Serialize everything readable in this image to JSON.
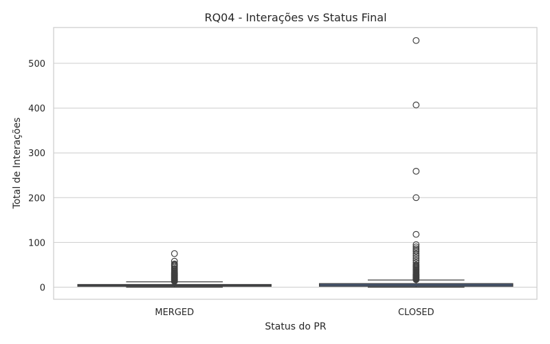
{
  "chart_data": {
    "type": "box",
    "title": "RQ04 - Interações vs Status Final",
    "xlabel": "Status do PR",
    "ylabel": "Total de Interações",
    "ylim": [
      -27,
      580
    ],
    "yticks": [
      0,
      100,
      200,
      300,
      400,
      500
    ],
    "grid": true,
    "colors": {
      "box_fill": "#4c72b0",
      "line": "#3f3f3f",
      "grid": "#cccccc"
    },
    "categories": [
      "MERGED",
      "CLOSED"
    ],
    "boxes": [
      {
        "category": "MERGED",
        "q1": 2,
        "median": 4,
        "q3": 6,
        "whisker_low": 0,
        "whisker_high": 12,
        "outliers": [
          13,
          14,
          15,
          16,
          17,
          18,
          19,
          20,
          21,
          22,
          23,
          24,
          25,
          26,
          27,
          28,
          29,
          30,
          31,
          32,
          33,
          35,
          37,
          40,
          42,
          45,
          48,
          50,
          52,
          58,
          75
        ]
      },
      {
        "category": "CLOSED",
        "q1": 2,
        "median": 5,
        "q3": 8,
        "whisker_low": 0,
        "whisker_high": 16,
        "outliers": [
          17,
          18,
          19,
          20,
          21,
          22,
          23,
          24,
          25,
          26,
          27,
          28,
          29,
          30,
          32,
          34,
          36,
          38,
          40,
          42,
          44,
          46,
          48,
          50,
          55,
          60,
          65,
          70,
          75,
          80,
          83,
          86,
          90,
          95,
          118,
          200,
          259,
          407,
          551
        ]
      }
    ]
  }
}
